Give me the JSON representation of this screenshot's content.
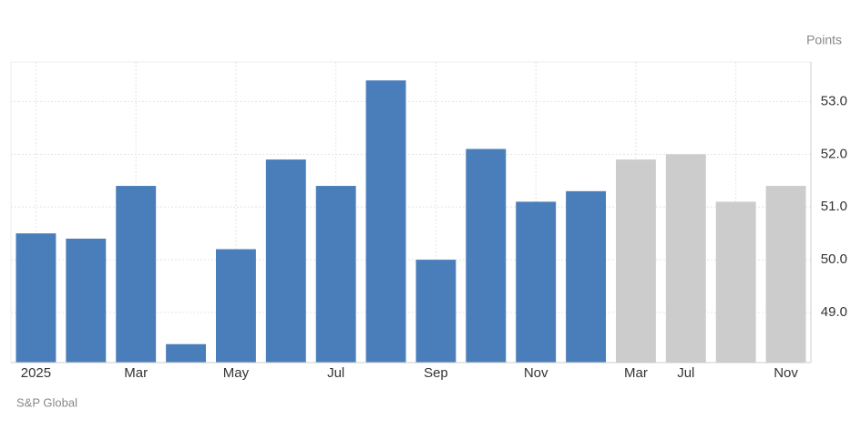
{
  "chart_data": {
    "type": "bar",
    "unit_label": "Points",
    "source": "S&P Global",
    "categories": [
      "2025",
      null,
      "Mar",
      null,
      "May",
      null,
      "Jul",
      null,
      "Sep",
      null,
      "Nov",
      null,
      "Mar",
      "Jul",
      null,
      "Nov"
    ],
    "values": [
      50.5,
      50.4,
      51.4,
      48.4,
      50.2,
      51.9,
      51.4,
      53.4,
      50.0,
      52.1,
      51.1,
      51.3,
      51.9,
      52.0,
      51.1,
      51.4
    ],
    "colors": [
      "#4a7ebb",
      "#4a7ebb",
      "#4a7ebb",
      "#4a7ebb",
      "#4a7ebb",
      "#4a7ebb",
      "#4a7ebb",
      "#4a7ebb",
      "#4a7ebb",
      "#4a7ebb",
      "#4a7ebb",
      "#4a7ebb",
      "#cccccc",
      "#cccccc",
      "#cccccc",
      "#cccccc"
    ],
    "ylim": [
      48.05,
      53.75
    ],
    "yticks": [
      {
        "value": 49,
        "label": "49.0"
      },
      {
        "value": 50,
        "label": "50.0"
      },
      {
        "value": 51,
        "label": "51.0"
      },
      {
        "value": 52,
        "label": "52.0"
      },
      {
        "value": 53,
        "label": "53.0"
      }
    ],
    "grid": true
  }
}
